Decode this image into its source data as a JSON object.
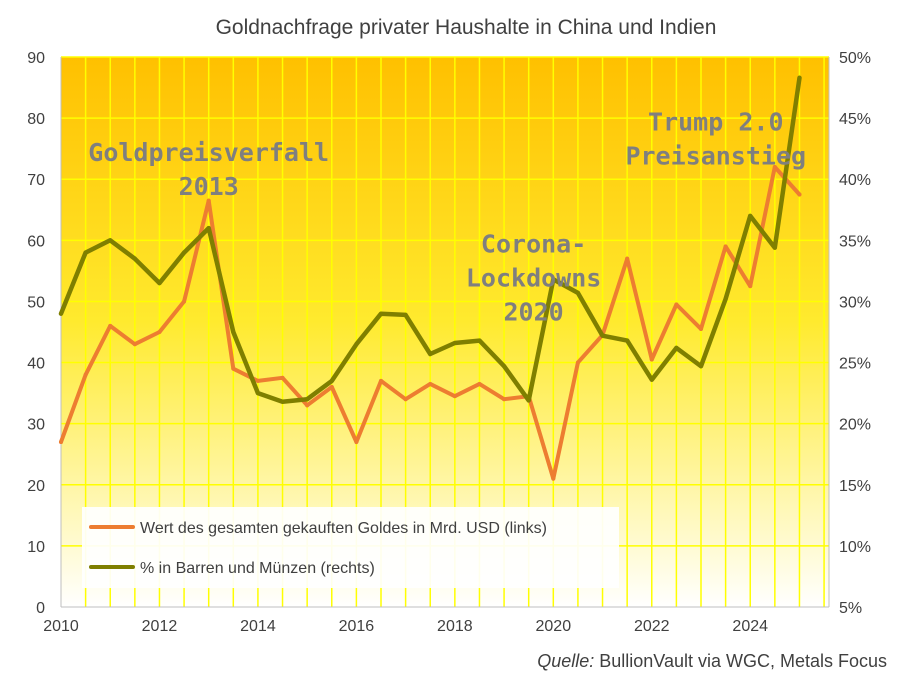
{
  "chart_data": {
    "type": "line",
    "title": "Goldnachfrage privater Haushalte in China und Indien",
    "x_ticks": [
      "2010",
      "2012",
      "2014",
      "2016",
      "2018",
      "2020",
      "2022",
      "2024"
    ],
    "y_left_ticks": [
      "0",
      "10",
      "20",
      "30",
      "40",
      "50",
      "60",
      "70",
      "80",
      "90"
    ],
    "y_right_ticks": [
      "5%",
      "10%",
      "15%",
      "20%",
      "25%",
      "30%",
      "35%",
      "40%",
      "45%",
      "50%"
    ],
    "xlim": [
      2010,
      2025.6
    ],
    "ylim_left": [
      0,
      90
    ],
    "ylim_right": [
      5,
      50
    ],
    "grid": true,
    "legend_position": "bottom-left",
    "colors": {
      "series_value": "#ed7d31",
      "series_share": "#7f7f00",
      "bg_top": "#ffc000",
      "bg_bottom": "#ffffff",
      "grid": "#ffff00"
    },
    "series": [
      {
        "name": "Wert des gesamten gekauften Goldes in Mrd. USD (links)",
        "axis": "left",
        "x": [
          2010,
          2010.5,
          2011,
          2011.5,
          2012,
          2012.5,
          2013,
          2013.5,
          2014,
          2014.5,
          2015,
          2015.5,
          2016,
          2016.5,
          2017,
          2017.5,
          2018,
          2018.5,
          2019,
          2019.5,
          2020,
          2020.5,
          2021,
          2021.5,
          2022,
          2022.5,
          2023,
          2023.5,
          2024,
          2024.5,
          2025
        ],
        "values": [
          27,
          38,
          46,
          43,
          45,
          50,
          66.5,
          39,
          37,
          37.5,
          33,
          36,
          27,
          37,
          34,
          36.5,
          34.5,
          36.5,
          34,
          34.5,
          21,
          40,
          44.5,
          57,
          40.5,
          49.5,
          45.5,
          59,
          52.5,
          72,
          67.5
        ]
      },
      {
        "name": "% in Barren und Münzen (rechts)",
        "axis": "right",
        "x": [
          2010,
          2010.5,
          2011,
          2011.5,
          2012,
          2012.5,
          2013,
          2013.5,
          2014,
          2014.5,
          2015,
          2015.5,
          2016,
          2016.5,
          2017,
          2017.5,
          2018,
          2018.5,
          2019,
          2019.5,
          2020,
          2020.5,
          2021,
          2021.5,
          2022,
          2022.5,
          2023,
          2023.5,
          2024,
          2024.5,
          2025
        ],
        "values": [
          29,
          34,
          35,
          33.5,
          31.5,
          34,
          36,
          27.5,
          22.5,
          21.8,
          22,
          23.5,
          26.5,
          29,
          28.9,
          25.7,
          26.6,
          26.8,
          24.7,
          21.9,
          31.8,
          30.7,
          27.2,
          26.8,
          23.6,
          26.2,
          24.7,
          30.2,
          37,
          34.4,
          48.3
        ]
      }
    ],
    "annotations": [
      {
        "lines": [
          "Goldpreisverfall",
          "2013"
        ],
        "x": 2013,
        "y": 73
      },
      {
        "lines": [
          "Corona-",
          "Lockdowns",
          "2020"
        ],
        "x": 2019.6,
        "y": 58
      },
      {
        "lines": [
          "Trump 2.0",
          "Preisanstieg"
        ],
        "x": 2023.3,
        "y": 78
      }
    ]
  },
  "footer": {
    "source_label": "Quelle:",
    "source_text": " BullionVault  via WGC, Metals Focus"
  }
}
